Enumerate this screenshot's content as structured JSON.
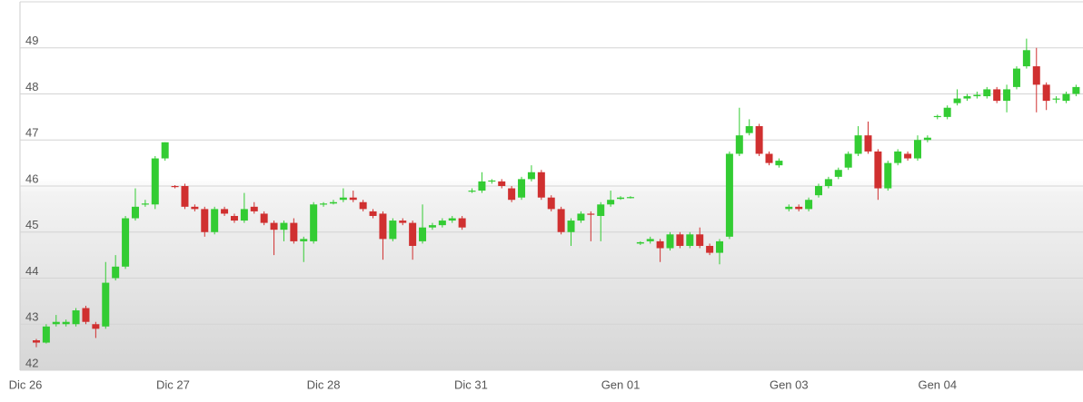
{
  "chart_data": {
    "type": "candlestick",
    "x": [
      0,
      1,
      2,
      3,
      4,
      5,
      6,
      7,
      8,
      9,
      10,
      11,
      12,
      13,
      14,
      15,
      16,
      17,
      18,
      19,
      20,
      21,
      22,
      23,
      24,
      25,
      26,
      27,
      28,
      29,
      30,
      31,
      32,
      33,
      34,
      35,
      36,
      37,
      38,
      39,
      40,
      41,
      42,
      43,
      44,
      45,
      46,
      47,
      48,
      49,
      50,
      51,
      52,
      53,
      54,
      55,
      56,
      57,
      58,
      59,
      60,
      61,
      62,
      63,
      64,
      65,
      66,
      67,
      68,
      69,
      70,
      71,
      72,
      73,
      74,
      75,
      76,
      77,
      78,
      79,
      80,
      81,
      82,
      83,
      84,
      85,
      86,
      87,
      88,
      89,
      90,
      91,
      92,
      93,
      94,
      95,
      96,
      97,
      98,
      99,
      100,
      101,
      102,
      103,
      104,
      105
    ],
    "open": [
      42.65,
      42.6,
      43.0,
      43.0,
      43.0,
      43.35,
      43.0,
      42.95,
      44.0,
      44.25,
      45.3,
      45.6,
      45.6,
      46.6,
      46.0,
      46.0,
      45.55,
      45.5,
      45.0,
      45.5,
      45.35,
      45.25,
      45.55,
      45.4,
      45.2,
      45.05,
      45.2,
      44.8,
      44.8,
      45.6,
      45.62,
      45.7,
      45.75,
      45.65,
      45.45,
      45.4,
      44.85,
      45.25,
      45.2,
      44.8,
      45.1,
      45.15,
      45.25,
      45.3,
      45.88,
      45.9,
      46.1,
      46.1,
      45.95,
      45.75,
      46.15,
      46.3,
      45.75,
      45.5,
      45.0,
      45.25,
      45.4,
      45.35,
      45.6,
      45.72,
      45.75,
      44.75,
      44.8,
      44.8,
      44.65,
      44.95,
      44.7,
      44.95,
      44.7,
      44.55,
      44.9,
      46.7,
      47.15,
      47.3,
      46.7,
      46.45,
      45.5,
      45.55,
      45.5,
      45.8,
      46.0,
      46.2,
      46.4,
      46.7,
      47.1,
      46.75,
      45.95,
      46.5,
      46.7,
      46.6,
      47.0,
      47.5,
      47.5,
      47.8,
      47.9,
      47.95,
      47.95,
      48.1,
      47.85,
      48.15,
      48.6,
      48.6,
      48.2,
      47.9,
      47.85,
      48.0
    ],
    "high": [
      42.68,
      43.0,
      43.2,
      43.1,
      43.35,
      43.4,
      43.05,
      44.35,
      44.5,
      45.35,
      45.95,
      45.7,
      46.65,
      46.95,
      46.02,
      46.05,
      45.6,
      45.55,
      45.55,
      45.55,
      45.4,
      45.85,
      45.65,
      45.45,
      45.25,
      45.25,
      45.3,
      44.9,
      45.65,
      45.65,
      45.7,
      45.95,
      45.9,
      45.7,
      45.5,
      45.45,
      45.3,
      45.3,
      45.25,
      45.6,
      45.2,
      45.3,
      45.35,
      45.35,
      45.95,
      46.3,
      46.15,
      46.15,
      46.0,
      46.2,
      46.45,
      46.35,
      45.8,
      45.55,
      45.3,
      45.45,
      45.45,
      45.65,
      45.9,
      45.78,
      45.78,
      44.8,
      44.9,
      44.85,
      45.0,
      45.0,
      45.0,
      45.1,
      44.75,
      44.85,
      46.75,
      47.7,
      47.45,
      47.35,
      46.75,
      46.6,
      45.6,
      45.6,
      45.75,
      46.05,
      46.2,
      46.4,
      46.75,
      47.3,
      47.4,
      46.8,
      46.55,
      46.8,
      46.75,
      47.1,
      47.1,
      47.55,
      47.75,
      48.1,
      48.0,
      48.05,
      48.15,
      48.15,
      48.2,
      48.6,
      49.2,
      49.0,
      48.25,
      47.95,
      48.05,
      48.2
    ],
    "low": [
      42.5,
      42.58,
      42.95,
      42.95,
      42.95,
      43.0,
      42.7,
      42.9,
      43.95,
      44.2,
      45.25,
      45.55,
      45.5,
      46.55,
      45.95,
      45.5,
      45.45,
      44.9,
      44.95,
      45.35,
      45.2,
      45.2,
      45.4,
      45.15,
      44.5,
      44.8,
      44.75,
      44.35,
      44.75,
      45.55,
      45.6,
      45.65,
      45.65,
      45.45,
      45.3,
      44.4,
      44.8,
      45.15,
      44.4,
      44.75,
      45.05,
      45.1,
      45.2,
      45.05,
      45.85,
      45.85,
      46.05,
      45.95,
      45.65,
      45.7,
      46.1,
      45.7,
      45.45,
      44.95,
      44.7,
      45.2,
      44.8,
      44.8,
      45.55,
      45.7,
      45.73,
      44.72,
      44.75,
      44.35,
      44.6,
      44.65,
      44.65,
      44.65,
      44.5,
      44.3,
      44.85,
      46.65,
      47.1,
      46.65,
      46.45,
      46.4,
      45.45,
      45.45,
      45.45,
      45.75,
      45.95,
      46.15,
      46.35,
      46.65,
      46.7,
      45.7,
      45.9,
      46.45,
      46.55,
      46.55,
      46.95,
      47.45,
      47.45,
      47.75,
      47.85,
      47.9,
      47.9,
      47.8,
      47.6,
      48.1,
      48.55,
      47.6,
      47.65,
      47.8,
      47.8,
      47.95
    ],
    "close": [
      42.6,
      42.95,
      43.05,
      43.05,
      43.3,
      43.05,
      42.9,
      43.9,
      44.25,
      45.3,
      45.55,
      45.62,
      46.6,
      46.95,
      45.98,
      45.55,
      45.5,
      45.0,
      45.5,
      45.4,
      45.25,
      45.5,
      45.45,
      45.2,
      45.05,
      45.2,
      44.8,
      44.85,
      45.6,
      45.62,
      45.65,
      45.75,
      45.7,
      45.5,
      45.35,
      44.85,
      45.25,
      45.2,
      44.7,
      45.1,
      45.15,
      45.25,
      45.3,
      45.1,
      45.9,
      46.1,
      46.12,
      46.0,
      45.7,
      46.15,
      46.3,
      45.75,
      45.5,
      45.0,
      45.25,
      45.4,
      45.38,
      45.6,
      45.7,
      45.75,
      45.76,
      44.78,
      44.85,
      44.65,
      44.95,
      44.7,
      44.95,
      44.7,
      44.55,
      44.8,
      46.7,
      47.1,
      47.3,
      46.7,
      46.5,
      46.55,
      45.55,
      45.5,
      45.7,
      46.0,
      46.15,
      46.35,
      46.7,
      47.1,
      46.75,
      45.95,
      46.5,
      46.75,
      46.6,
      47.0,
      47.05,
      47.52,
      47.7,
      47.9,
      47.95,
      47.98,
      48.1,
      47.85,
      48.1,
      48.55,
      48.95,
      48.2,
      47.85,
      47.9,
      48.0,
      48.15
    ],
    "up_color": "#33cc33",
    "down_color": "#d03030",
    "xlim": [
      -1.65,
      105.7
    ],
    "xticks": [
      {
        "value": -1.1,
        "label": "Dic 26"
      },
      {
        "value": 13.8,
        "label": "Dic 27"
      },
      {
        "value": 29,
        "label": "Dic 28"
      },
      {
        "value": 43.9,
        "label": "Dic 31"
      },
      {
        "value": 59,
        "label": "Gen 01"
      },
      {
        "value": 76,
        "label": "Gen 03"
      },
      {
        "value": 91,
        "label": "Gen 04"
      }
    ],
    "ylim": [
      42,
      50
    ],
    "yticks": [
      42,
      43,
      44,
      45,
      46,
      47,
      48,
      49
    ],
    "grid": true
  }
}
